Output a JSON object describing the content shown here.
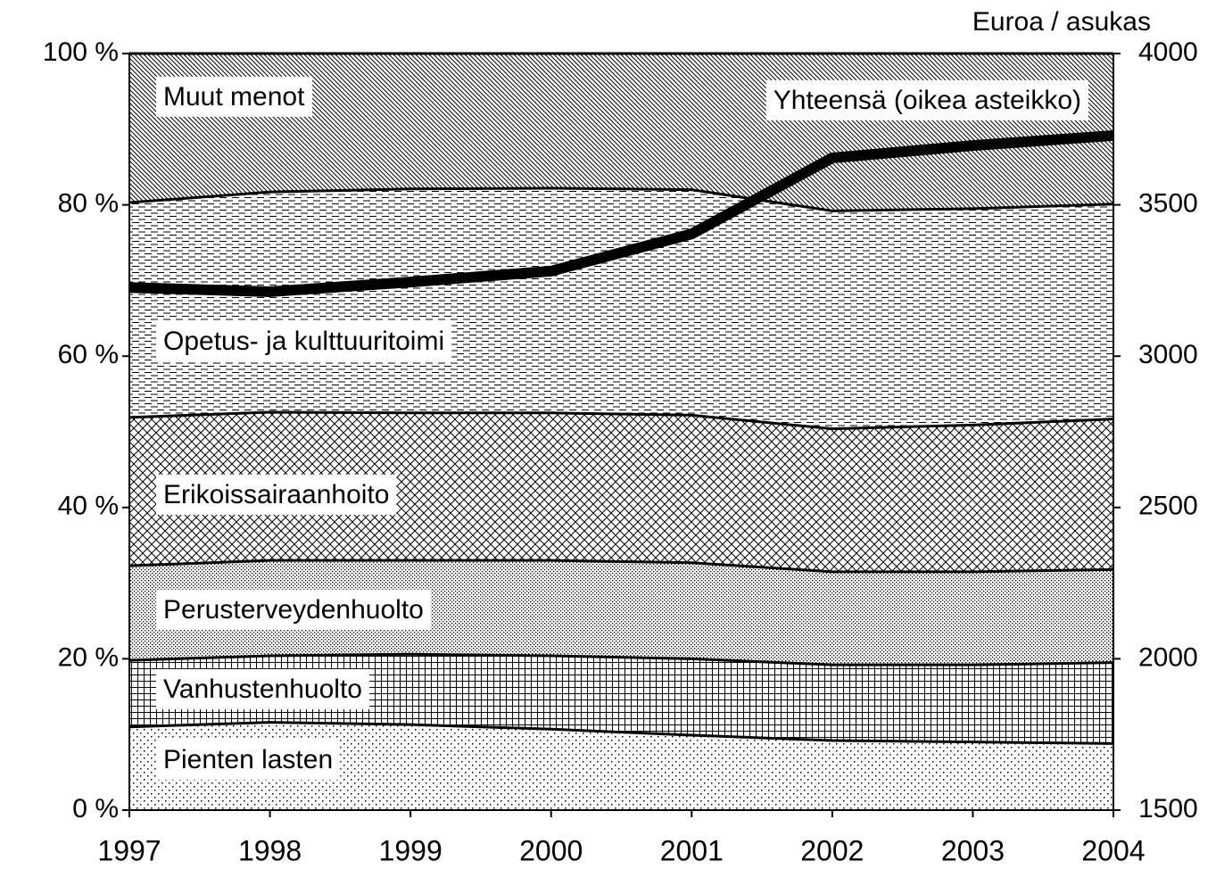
{
  "chart_data": {
    "type": "stacked_area",
    "x": [
      1997,
      1998,
      1999,
      2000,
      2001,
      2002,
      2003,
      2004
    ],
    "xlim": [
      1997,
      2004
    ],
    "xticks": [
      1997,
      1998,
      1999,
      2000,
      2001,
      2002,
      2003,
      2004
    ],
    "ylim": [
      0,
      100
    ],
    "yticks": [
      {
        "value": 0,
        "label": "0 %"
      },
      {
        "value": 20,
        "label": "20 %"
      },
      {
        "value": 40,
        "label": "40 %"
      },
      {
        "value": 60,
        "label": "60 %"
      },
      {
        "value": 80,
        "label": "80 %"
      },
      {
        "value": 100,
        "label": "100 %"
      }
    ],
    "y2label": "Euroa / asukas",
    "y2lim": [
      1500,
      4000
    ],
    "y2ticks": [
      1500,
      2000,
      2500,
      3000,
      3500,
      4000
    ],
    "series": [
      {
        "name": "Pienten lasten",
        "pattern": "sparse-dots",
        "color": "#000000",
        "values": [
          11.0,
          11.6,
          11.3,
          10.7,
          9.9,
          9.2,
          9.0,
          8.8
        ]
      },
      {
        "name": "Vanhustenhuolto",
        "pattern": "grid",
        "color": "#000000",
        "values": [
          8.8,
          8.8,
          9.3,
          9.7,
          10.1,
          10.0,
          10.2,
          10.7
        ]
      },
      {
        "name": "Perusterveydenhuolto",
        "pattern": "dense-dots",
        "color": "#000000",
        "values": [
          12.5,
          12.6,
          12.4,
          12.6,
          12.7,
          12.3,
          12.3,
          12.3
        ]
      },
      {
        "name": "Erikoissairaanhoito",
        "pattern": "crosshatch",
        "color": "#000000",
        "values": [
          19.6,
          19.6,
          19.5,
          19.5,
          19.5,
          18.9,
          19.4,
          19.9
        ]
      },
      {
        "name": "Opetus- ja kulttuuritoimi",
        "pattern": "dashes",
        "color": "#000000",
        "values": [
          28.4,
          29.1,
          29.6,
          29.7,
          29.8,
          28.8,
          28.6,
          28.4
        ]
      },
      {
        "name": "Muut menot",
        "pattern": "diagonal",
        "color": "#000000",
        "values": [
          19.7,
          18.3,
          17.9,
          17.8,
          18.0,
          20.8,
          20.5,
          19.9
        ]
      },
      {
        "name": "Yhteensä (oikea asteikko)",
        "type": "line",
        "axis": "y2",
        "color": "#000000",
        "values": [
          3227,
          3213,
          3245,
          3281,
          3404,
          3655,
          3696,
          3729
        ]
      }
    ]
  }
}
